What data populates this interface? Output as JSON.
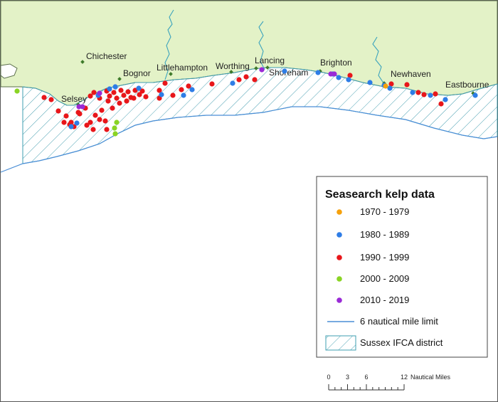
{
  "legend": {
    "title": "Seasearch kelp data",
    "items": [
      {
        "label": "1970 - 1979",
        "color": "#f6a10c",
        "kind": "dot"
      },
      {
        "label": "1980 - 1989",
        "color": "#2e7de6",
        "kind": "dot"
      },
      {
        "label": "1990 - 1999",
        "color": "#e8161a",
        "kind": "dot"
      },
      {
        "label": "2000 - 2009",
        "color": "#8ad424",
        "kind": "dot"
      },
      {
        "label": "2010 - 2019",
        "color": "#9a2ad6",
        "kind": "dot"
      },
      {
        "label": "6 nautical mile limit",
        "color": "#4a8ed6",
        "kind": "line"
      },
      {
        "label": "Sussex IFCA district",
        "color": "#3f9fb0",
        "kind": "hatch"
      }
    ]
  },
  "towns": [
    "Chichester",
    "Bognor",
    "Selsey",
    "Littlehampton",
    "Worthing",
    "Lancing",
    "Shoreham",
    "Brighton",
    "Newhaven",
    "Eastbourne"
  ],
  "scale_bar": {
    "ticks": [
      "0",
      "3",
      "6",
      "12"
    ],
    "unit": "Nautical Miles"
  },
  "colors": {
    "land": "#e3f2c7",
    "coast": "#5a6e4a",
    "rivers": "#3ba3bd",
    "town_marker": "#3e7a2a"
  }
}
